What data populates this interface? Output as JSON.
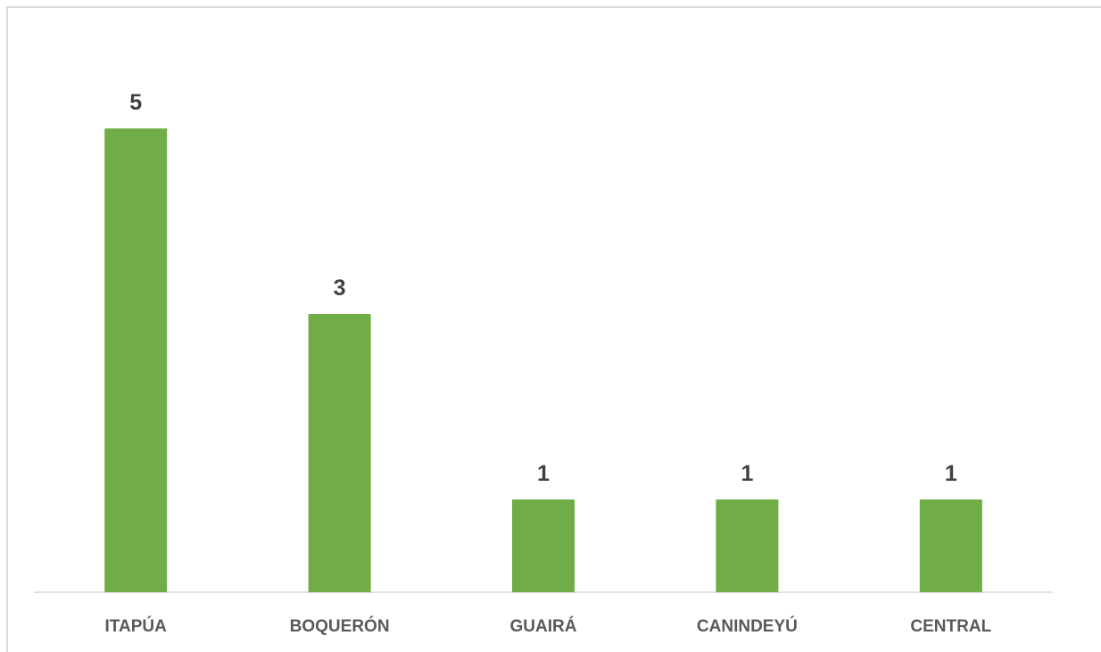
{
  "chart_data": {
    "type": "bar",
    "categories": [
      "ITAPÚA",
      "BOQUERÓN",
      "GUAIRÁ",
      "CANINDEYÚ",
      "CENTRAL"
    ],
    "values": [
      5,
      3,
      1,
      1,
      1
    ],
    "data_labels": [
      "5",
      "3",
      "1",
      "1",
      "1"
    ],
    "title": "",
    "xlabel": "",
    "ylabel": "",
    "ylim": [
      0,
      5
    ],
    "grid": false,
    "legend": "none",
    "bar_color": "#70ad47",
    "axis_color": "#d9d9d9",
    "label_color": "#404040",
    "category_color": "#595959"
  }
}
